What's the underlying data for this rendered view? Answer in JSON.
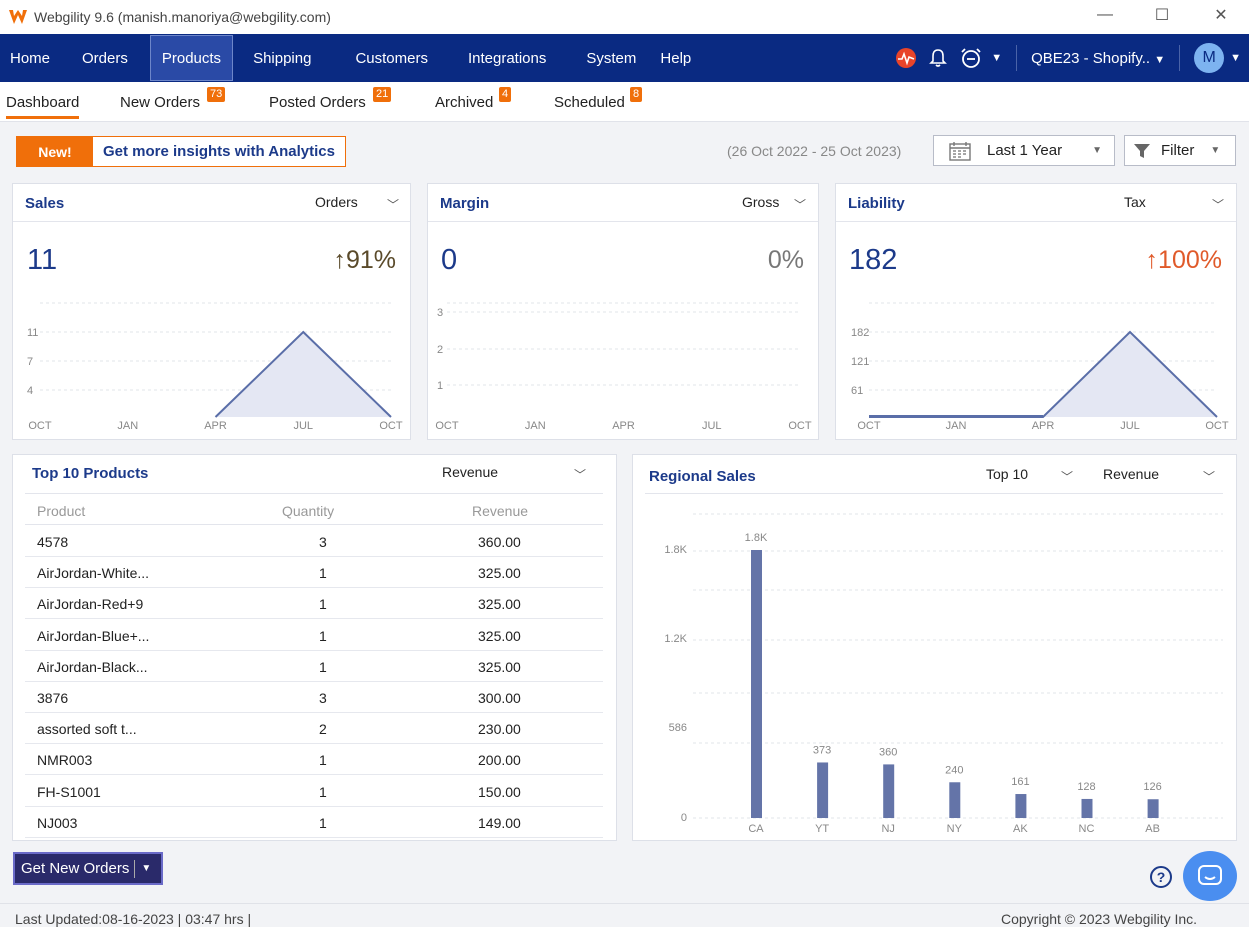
{
  "window": {
    "title": "Webgility 9.6 (manish.manoriya@webgility.com)",
    "min": "—",
    "max": "☐",
    "close": "✕"
  },
  "nav": {
    "items": [
      "Home",
      "Orders",
      "Products",
      "Shipping",
      "Customers",
      "Integrations",
      "System",
      "Help"
    ],
    "active": "Products",
    "store": "QBE23 - Shopify..",
    "avatar": "M"
  },
  "subtabs": [
    {
      "label": "Dashboard",
      "badge": ""
    },
    {
      "label": "New Orders",
      "badge": "73"
    },
    {
      "label": "Posted Orders",
      "badge": "21"
    },
    {
      "label": "Archived",
      "badge": "4"
    },
    {
      "label": "Scheduled",
      "badge": "8"
    }
  ],
  "promo": {
    "new": "New!",
    "text": "Get more insights with Analytics"
  },
  "date_range": "(26 Oct 2022 - 25 Oct 2023)",
  "period": "Last 1 Year",
  "filter": "Filter",
  "colors": {
    "navy": "#0a2a82",
    "accent": "#f06f0a",
    "title": "#1c3a8a",
    "up_dark": "#5a4a2a",
    "up_red": "#e05a2a",
    "bar": "#6474a8",
    "area": "#e4e7f3",
    "line": "#5a6ea8"
  },
  "sales": {
    "title": "Sales",
    "metric": "Orders",
    "value": "11",
    "change": "↑91%"
  },
  "margin": {
    "title": "Margin",
    "metric": "Gross",
    "value": "0",
    "change": "0%"
  },
  "liability": {
    "title": "Liability",
    "metric": "Tax",
    "value": "182",
    "change": "↑100%"
  },
  "top_products": {
    "title": "Top 10 Products",
    "metric": "Revenue",
    "headers": [
      "Product",
      "Quantity",
      "Revenue"
    ],
    "rows": [
      [
        "4578",
        "3",
        "360.00"
      ],
      [
        "AirJordan-White...",
        "1",
        "325.00"
      ],
      [
        "AirJordan-Red+9",
        "1",
        "325.00"
      ],
      [
        "AirJordan-Blue+...",
        "1",
        "325.00"
      ],
      [
        "AirJordan-Black...",
        "1",
        "325.00"
      ],
      [
        "3876",
        "3",
        "300.00"
      ],
      [
        "assorted soft t...",
        "2",
        "230.00"
      ],
      [
        "NMR003",
        "1",
        "200.00"
      ],
      [
        "FH-S1001",
        "1",
        "150.00"
      ],
      [
        "NJ003",
        "1",
        "149.00"
      ]
    ]
  },
  "regional": {
    "title": "Regional Sales",
    "top": "Top 10",
    "metric": "Revenue"
  },
  "buttons": {
    "get_orders": "Get New Orders"
  },
  "footer": {
    "updated": "Last Updated:08-16-2023 | 03:47 hrs |",
    "copyright": "Copyright © 2023 Webgility Inc."
  },
  "chart_data": [
    {
      "type": "area",
      "title": "Sales",
      "categories": [
        "OCT",
        "JAN",
        "APR",
        "JUL",
        "OCT"
      ],
      "ticks": [
        "11",
        "7",
        "4"
      ],
      "x": [
        "OCT",
        "JAN",
        "APR",
        "JUL",
        "OCT"
      ],
      "values": [
        null,
        null,
        0,
        11,
        0
      ],
      "ylim": [
        0,
        11
      ]
    },
    {
      "type": "area",
      "title": "Margin",
      "categories": [
        "OCT",
        "JAN",
        "APR",
        "JUL",
        "OCT"
      ],
      "ticks": [
        "3",
        "2",
        "1"
      ],
      "values": [
        0,
        0,
        0,
        0,
        0
      ],
      "ylim": [
        0,
        3
      ]
    },
    {
      "type": "area",
      "title": "Liability",
      "categories": [
        "OCT",
        "JAN",
        "APR",
        "JUL",
        "OCT"
      ],
      "ticks": [
        "182",
        "121",
        "61"
      ],
      "values": [
        0,
        0,
        0,
        182,
        0
      ],
      "ylim": [
        0,
        182
      ]
    },
    {
      "type": "bar",
      "title": "Regional Sales",
      "categories": [
        "CA",
        "YT",
        "NJ",
        "NY",
        "AK",
        "NC",
        "AB"
      ],
      "values": [
        1800,
        373,
        360,
        240,
        161,
        128,
        126
      ],
      "labels": [
        "1.8K",
        "373",
        "360",
        "240",
        "161",
        "128",
        "126"
      ],
      "ticks": [
        "1.8K",
        "1.2K",
        "586",
        "0"
      ],
      "ylim": [
        0,
        1800
      ]
    }
  ]
}
